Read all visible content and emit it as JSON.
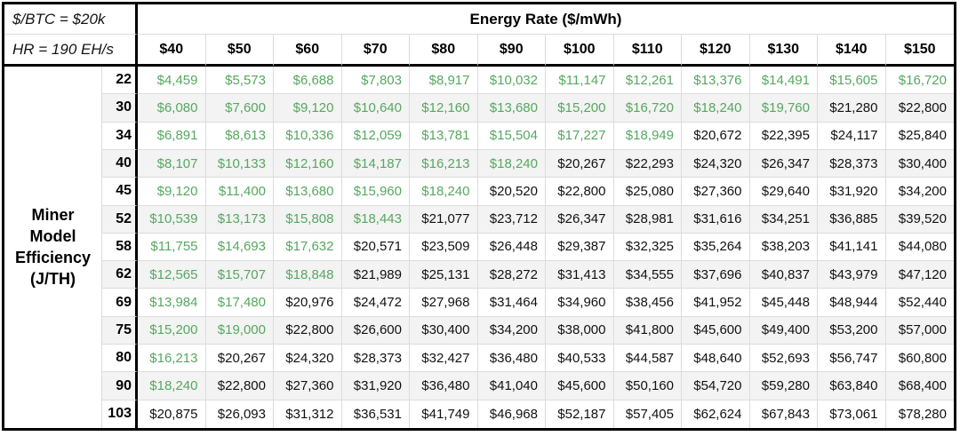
{
  "header": {
    "btc_label": "$/BTC = $20k",
    "hashrate_label": "HR = 190 EH/s",
    "energy_rate_title": "Energy Rate ($/mWh)",
    "energy_columns": [
      "$40",
      "$50",
      "$60",
      "$70",
      "$80",
      "$90",
      "$100",
      "$110",
      "$120",
      "$130",
      "$140",
      "$150"
    ]
  },
  "row_axis": {
    "title_lines": [
      "Miner",
      "Model",
      "Efficiency",
      "(J/TH)"
    ],
    "efficiencies": [
      "22",
      "30",
      "34",
      "40",
      "45",
      "52",
      "58",
      "62",
      "69",
      "75",
      "80",
      "90",
      "103"
    ]
  },
  "table": {
    "cells": [
      [
        "$4,459",
        "$5,573",
        "$6,688",
        "$7,803",
        "$8,917",
        "$10,032",
        "$11,147",
        "$12,261",
        "$13,376",
        "$14,491",
        "$15,605",
        "$16,720"
      ],
      [
        "$6,080",
        "$7,600",
        "$9,120",
        "$10,640",
        "$12,160",
        "$13,680",
        "$15,200",
        "$16,720",
        "$18,240",
        "$19,760",
        "$21,280",
        "$22,800"
      ],
      [
        "$6,891",
        "$8,613",
        "$10,336",
        "$12,059",
        "$13,781",
        "$15,504",
        "$17,227",
        "$18,949",
        "$20,672",
        "$22,395",
        "$24,117",
        "$25,840"
      ],
      [
        "$8,107",
        "$10,133",
        "$12,160",
        "$14,187",
        "$16,213",
        "$18,240",
        "$20,267",
        "$22,293",
        "$24,320",
        "$26,347",
        "$28,373",
        "$30,400"
      ],
      [
        "$9,120",
        "$11,400",
        "$13,680",
        "$15,960",
        "$18,240",
        "$20,520",
        "$22,800",
        "$25,080",
        "$27,360",
        "$29,640",
        "$31,920",
        "$34,200"
      ],
      [
        "$10,539",
        "$13,173",
        "$15,808",
        "$18,443",
        "$21,077",
        "$23,712",
        "$26,347",
        "$28,981",
        "$31,616",
        "$34,251",
        "$36,885",
        "$39,520"
      ],
      [
        "$11,755",
        "$14,693",
        "$17,632",
        "$20,571",
        "$23,509",
        "$26,448",
        "$29,387",
        "$32,325",
        "$35,264",
        "$38,203",
        "$41,141",
        "$44,080"
      ],
      [
        "$12,565",
        "$15,707",
        "$18,848",
        "$21,989",
        "$25,131",
        "$28,272",
        "$31,413",
        "$34,555",
        "$37,696",
        "$40,837",
        "$43,979",
        "$47,120"
      ],
      [
        "$13,984",
        "$17,480",
        "$20,976",
        "$24,472",
        "$27,968",
        "$31,464",
        "$34,960",
        "$38,456",
        "$41,952",
        "$45,448",
        "$48,944",
        "$52,440"
      ],
      [
        "$15,200",
        "$19,000",
        "$22,800",
        "$26,600",
        "$30,400",
        "$34,200",
        "$38,000",
        "$41,800",
        "$45,600",
        "$49,400",
        "$53,200",
        "$57,000"
      ],
      [
        "$16,213",
        "$20,267",
        "$24,320",
        "$28,373",
        "$32,427",
        "$36,480",
        "$40,533",
        "$44,587",
        "$48,640",
        "$52,693",
        "$56,747",
        "$60,800"
      ],
      [
        "$18,240",
        "$22,800",
        "$27,360",
        "$31,920",
        "$36,480",
        "$41,040",
        "$45,600",
        "$50,160",
        "$54,720",
        "$59,280",
        "$63,840",
        "$68,400"
      ],
      [
        "$20,875",
        "$26,093",
        "$31,312",
        "$36,531",
        "$41,749",
        "$46,968",
        "$52,187",
        "$57,405",
        "$62,624",
        "$67,843",
        "$73,061",
        "$78,280"
      ]
    ]
  },
  "colors": {
    "below_price_green": "#55a85f",
    "above_price_black": "#111111",
    "row_alt_gray": "#f3f3f3",
    "grid_line": "#dcdcdc",
    "frame_black": "#000000"
  },
  "chart_data": {
    "type": "table",
    "title": "Energy Rate ($/mWh)",
    "row_axis_label": "Miner Model Efficiency (J/TH)",
    "context_labels": [
      "$/BTC = $20k",
      "HR = 190 EH/s"
    ],
    "columns_usd_per_mwh": [
      40,
      50,
      60,
      70,
      80,
      90,
      100,
      110,
      120,
      130,
      140,
      150
    ],
    "rows_j_per_th": [
      22,
      30,
      34,
      40,
      45,
      52,
      58,
      62,
      69,
      75,
      80,
      90,
      103
    ],
    "values_usd": [
      [
        4459,
        5573,
        6688,
        7803,
        8917,
        10032,
        11147,
        12261,
        13376,
        14491,
        15605,
        16720
      ],
      [
        6080,
        7600,
        9120,
        10640,
        12160,
        13680,
        15200,
        16720,
        18240,
        19760,
        21280,
        22800
      ],
      [
        6891,
        8613,
        10336,
        12059,
        13781,
        15504,
        17227,
        18949,
        20672,
        22395,
        24117,
        25840
      ],
      [
        8107,
        10133,
        12160,
        14187,
        16213,
        18240,
        20267,
        22293,
        24320,
        26347,
        28373,
        30400
      ],
      [
        9120,
        11400,
        13680,
        15960,
        18240,
        20520,
        22800,
        25080,
        27360,
        29640,
        31920,
        34200
      ],
      [
        10539,
        13173,
        15808,
        18443,
        21077,
        23712,
        26347,
        28981,
        31616,
        34251,
        36885,
        39520
      ],
      [
        11755,
        14693,
        17632,
        20571,
        23509,
        26448,
        29387,
        32325,
        35264,
        38203,
        41141,
        44080
      ],
      [
        12565,
        15707,
        18848,
        21989,
        25131,
        28272,
        31413,
        34555,
        37696,
        40837,
        43979,
        47120
      ],
      [
        13984,
        17480,
        20976,
        24472,
        27968,
        31464,
        34960,
        38456,
        41952,
        45448,
        48944,
        52440
      ],
      [
        15200,
        19000,
        22800,
        26600,
        30400,
        34200,
        38000,
        41800,
        45600,
        49400,
        53200,
        57000
      ],
      [
        16213,
        20267,
        24320,
        28373,
        32427,
        36480,
        40533,
        44587,
        48640,
        52693,
        56747,
        60800
      ],
      [
        18240,
        22800,
        27360,
        31920,
        36480,
        41040,
        45600,
        50160,
        54720,
        59280,
        63840,
        68400
      ],
      [
        20875,
        26093,
        31312,
        36531,
        41749,
        46968,
        52187,
        57405,
        62624,
        67843,
        73061,
        78280
      ]
    ],
    "green_text_below_usd": 20000,
    "layout": {
      "grid": true,
      "alternating_row_shading": true,
      "legend": "none"
    }
  }
}
